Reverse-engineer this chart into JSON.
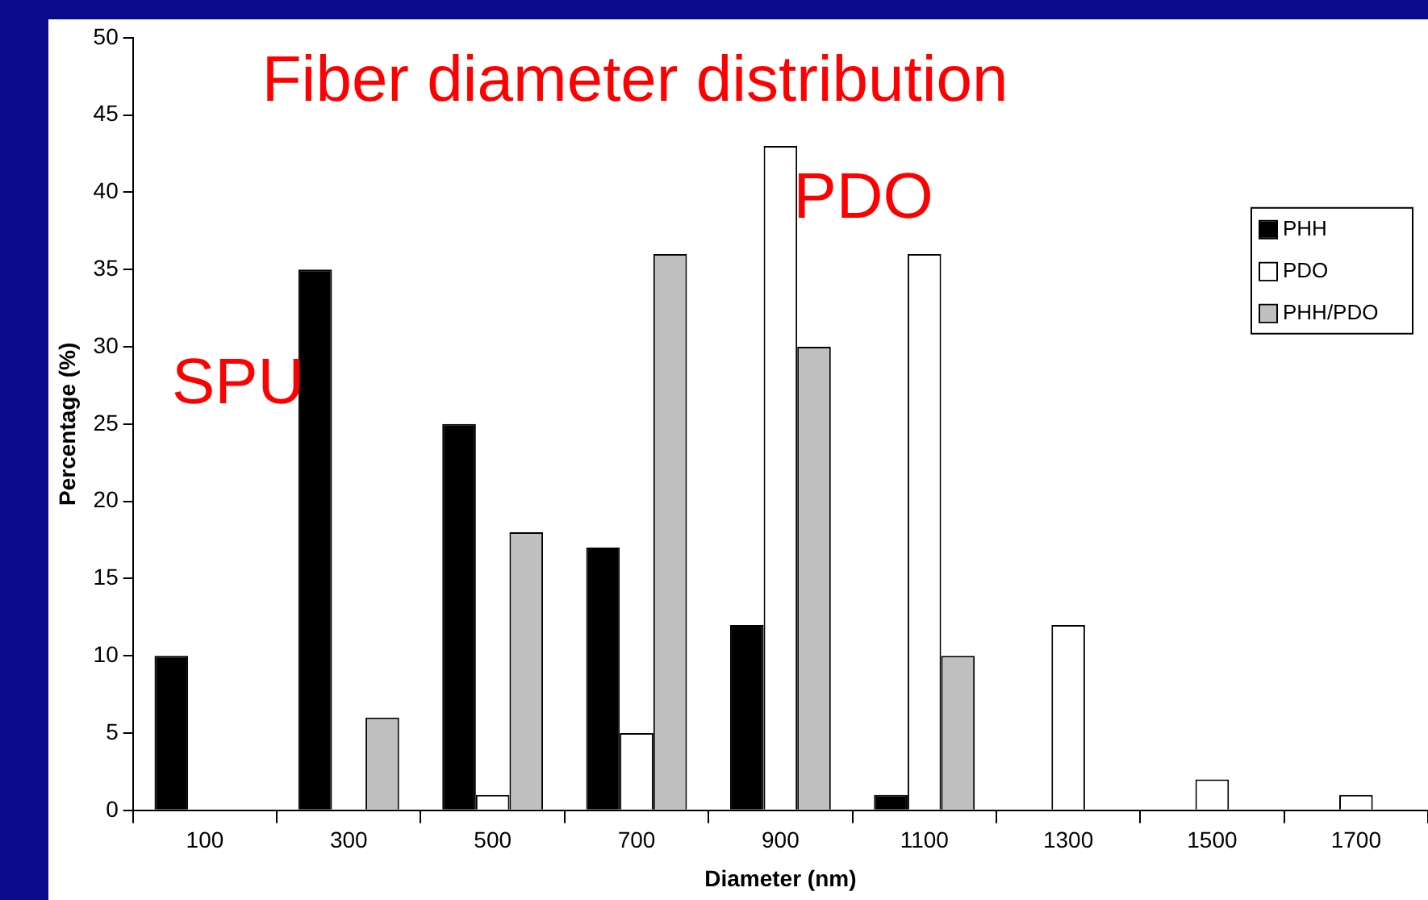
{
  "chart_data": {
    "type": "bar",
    "title": "Fiber diameter distribution",
    "xlabel": "Diameter (nm)",
    "ylabel": "Percentage (%)",
    "categories": [
      "100",
      "300",
      "500",
      "700",
      "900",
      "1100",
      "1300",
      "1500",
      "1700"
    ],
    "series": [
      {
        "name": "PHH",
        "color": "#000000",
        "values": [
          10,
          35,
          25,
          17,
          12,
          1,
          0,
          0,
          0
        ]
      },
      {
        "name": "PDO",
        "color": "#ffffff",
        "values": [
          0,
          0,
          1,
          5,
          43,
          36,
          12,
          2,
          1
        ]
      },
      {
        "name": "PHH/PDO",
        "color": "#c0c0c0",
        "values": [
          0,
          6,
          18,
          36,
          30,
          10,
          0,
          0,
          0
        ]
      }
    ],
    "ylim": [
      0,
      50
    ],
    "yticks": [
      0,
      5,
      10,
      15,
      20,
      25,
      30,
      35,
      40,
      45,
      50
    ],
    "grid": false,
    "legend": "top right",
    "annotations": [
      "SPU",
      "PDO"
    ]
  }
}
